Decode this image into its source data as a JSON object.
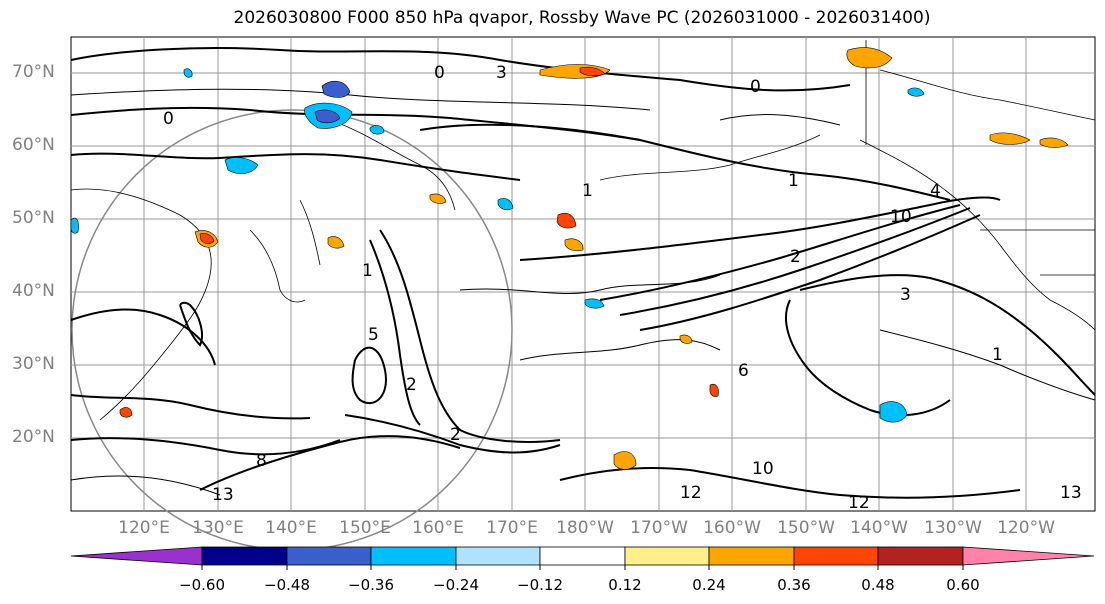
{
  "title": "2026030800 F000 850 hPa qvapor, Rossby Wave PC (2026031000 - 2026031400)",
  "map": {
    "lat_labels": [
      "70°N",
      "60°N",
      "50°N",
      "40°N",
      "30°N",
      "20°N"
    ],
    "lon_labels": [
      "120°E",
      "130°E",
      "140°E",
      "150°E",
      "160°E",
      "170°E",
      "180°W",
      "170°W",
      "160°W",
      "150°W",
      "140°W",
      "130°W",
      "120°W"
    ],
    "contour_labels": [
      "0",
      "0",
      "0",
      "1",
      "1",
      "1",
      "1",
      "2",
      "2",
      "2",
      "3",
      "3",
      "4",
      "5",
      "6",
      "8",
      "10",
      "10",
      "12",
      "12",
      "13",
      "13"
    ]
  },
  "colorbar": {
    "colors": [
      "#9932cc",
      "#00008b",
      "#3a5fcd",
      "#00bfff",
      "#b0e2ff",
      "#ffffff",
      "#fff08c",
      "#ffa500",
      "#ff4500",
      "#b22222",
      "#ff82ab"
    ],
    "tick_labels": [
      "−0.60",
      "−0.48",
      "−0.36",
      "−0.24",
      "−0.12",
      "0.12",
      "0.24",
      "0.36",
      "0.48",
      "0.60"
    ]
  }
}
